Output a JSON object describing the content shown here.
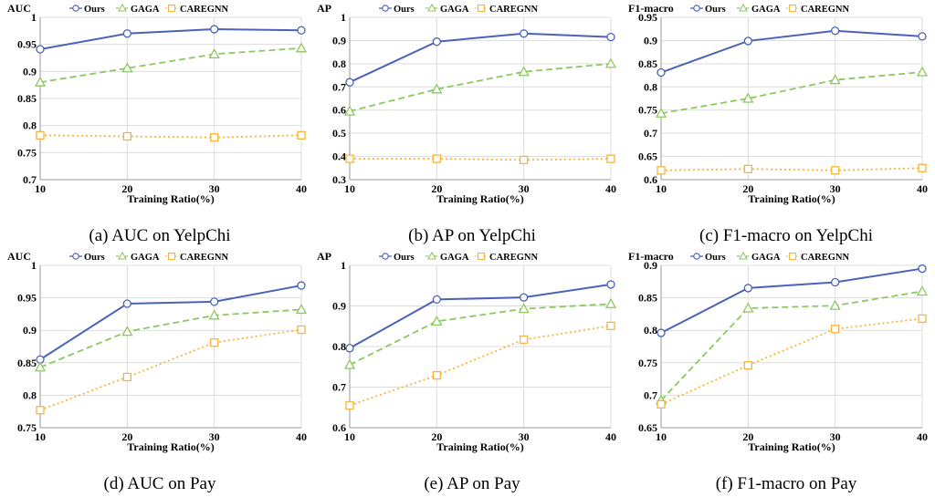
{
  "colors": {
    "ours": "#4A63B8",
    "gaga": "#8CC860",
    "caregnn": "#F5B53C",
    "grid": "#dcdcdc"
  },
  "chart_data": [
    {
      "type": "line",
      "caption": "(a) AUC on YelpChi",
      "ylabel": "AUC",
      "xlabel": "Training Ratio(%)",
      "legend_pos": "top-center",
      "grid": true,
      "x": [
        10,
        20,
        30,
        40
      ],
      "ylim": [
        0.7,
        1.0
      ],
      "yticks": [
        0.7,
        0.75,
        0.8,
        0.85,
        0.9,
        0.95,
        1
      ],
      "ytick_labels": [
        "0.7",
        "0.75",
        "0.8",
        "0.85",
        "0.9",
        "0.95",
        "1"
      ],
      "series": [
        {
          "name": "Ours",
          "values": [
            0.941,
            0.97,
            0.978,
            0.976
          ]
        },
        {
          "name": "GAGA",
          "values": [
            0.88,
            0.906,
            0.932,
            0.943
          ]
        },
        {
          "name": "CAREGNN",
          "values": [
            0.782,
            0.78,
            0.778,
            0.782
          ]
        }
      ]
    },
    {
      "type": "line",
      "caption": "(b) AP on YelpChi",
      "ylabel": "AP",
      "xlabel": "Training Ratio(%)",
      "legend_pos": "top-center",
      "grid": true,
      "x": [
        10,
        20,
        30,
        40
      ],
      "ylim": [
        0.3,
        1.0
      ],
      "yticks": [
        0.3,
        0.4,
        0.5,
        0.6,
        0.7,
        0.8,
        0.9,
        1
      ],
      "ytick_labels": [
        "0.3",
        "0.4",
        "0.5",
        "0.6",
        "0.7",
        "0.8",
        "0.9",
        "1"
      ],
      "series": [
        {
          "name": "Ours",
          "values": [
            0.72,
            0.895,
            0.93,
            0.915
          ]
        },
        {
          "name": "GAGA",
          "values": [
            0.595,
            0.69,
            0.765,
            0.8
          ]
        },
        {
          "name": "CAREGNN",
          "values": [
            0.39,
            0.39,
            0.385,
            0.39
          ]
        }
      ]
    },
    {
      "type": "line",
      "caption": "(c) F1-macro on YelpChi",
      "ylabel": "F1-macro",
      "xlabel": "Training Ratio(%)",
      "legend_pos": "top-center",
      "grid": true,
      "x": [
        10,
        20,
        30,
        40
      ],
      "ylim": [
        0.6,
        0.95
      ],
      "yticks": [
        0.6,
        0.65,
        0.7,
        0.75,
        0.8,
        0.85,
        0.9,
        0.95
      ],
      "ytick_labels": [
        "0.6",
        "0.65",
        "0.7",
        "0.75",
        "0.8",
        "0.85",
        "0.9",
        "0.95"
      ],
      "series": [
        {
          "name": "Ours",
          "values": [
            0.831,
            0.899,
            0.921,
            0.909
          ]
        },
        {
          "name": "GAGA",
          "values": [
            0.743,
            0.775,
            0.815,
            0.832
          ]
        },
        {
          "name": "CAREGNN",
          "values": [
            0.62,
            0.623,
            0.62,
            0.625
          ]
        }
      ]
    },
    {
      "type": "line",
      "caption": "(d) AUC on Pay",
      "ylabel": "AUC",
      "xlabel": "Training Ratio(%)",
      "legend_pos": "top-center",
      "grid": true,
      "x": [
        10,
        20,
        30,
        40
      ],
      "ylim": [
        0.75,
        1.0
      ],
      "yticks": [
        0.75,
        0.8,
        0.85,
        0.9,
        0.95,
        1
      ],
      "ytick_labels": [
        "0.75",
        "0.8",
        "0.85",
        "0.9",
        "0.95",
        "1"
      ],
      "series": [
        {
          "name": "Ours",
          "values": [
            0.855,
            0.941,
            0.944,
            0.969
          ]
        },
        {
          "name": "GAGA",
          "values": [
            0.843,
            0.898,
            0.923,
            0.932
          ]
        },
        {
          "name": "CAREGNN",
          "values": [
            0.777,
            0.828,
            0.881,
            0.901
          ]
        }
      ]
    },
    {
      "type": "line",
      "caption": "(e) AP on Pay",
      "ylabel": "AP",
      "xlabel": "Training Ratio(%)",
      "legend_pos": "top-center",
      "grid": true,
      "x": [
        10,
        20,
        30,
        40
      ],
      "ylim": [
        0.6,
        1.0
      ],
      "yticks": [
        0.6,
        0.7,
        0.8,
        0.9,
        1
      ],
      "ytick_labels": [
        "0.6",
        "0.7",
        "0.8",
        "0.9",
        "1"
      ],
      "series": [
        {
          "name": "Ours",
          "values": [
            0.796,
            0.916,
            0.921,
            0.953
          ]
        },
        {
          "name": "GAGA",
          "values": [
            0.755,
            0.862,
            0.893,
            0.905
          ]
        },
        {
          "name": "CAREGNN",
          "values": [
            0.655,
            0.729,
            0.817,
            0.851
          ]
        }
      ]
    },
    {
      "type": "line",
      "caption": "(f) F1-macro on Pay",
      "ylabel": "F1-macro",
      "xlabel": "Training Ratio(%)",
      "legend_pos": "top-center",
      "grid": true,
      "x": [
        10,
        20,
        30,
        40
      ],
      "ylim": [
        0.65,
        0.9
      ],
      "yticks": [
        0.65,
        0.7,
        0.75,
        0.8,
        0.85,
        0.9
      ],
      "ytick_labels": [
        "0.65",
        "0.7",
        "0.75",
        "0.8",
        "0.85",
        "0.9"
      ],
      "series": [
        {
          "name": "Ours",
          "values": [
            0.796,
            0.865,
            0.874,
            0.895
          ]
        },
        {
          "name": "GAGA",
          "values": [
            0.692,
            0.834,
            0.838,
            0.86
          ]
        },
        {
          "name": "CAREGNN",
          "values": [
            0.686,
            0.746,
            0.802,
            0.818
          ]
        }
      ]
    }
  ]
}
